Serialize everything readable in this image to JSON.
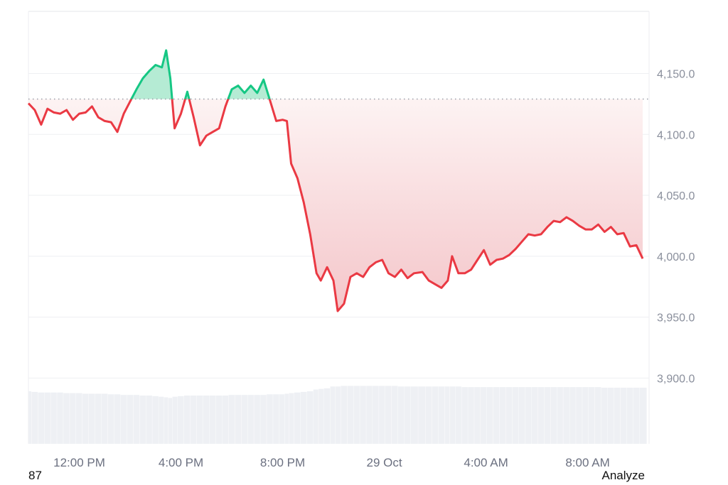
{
  "chart_data": {
    "type": "area",
    "title": "",
    "xlabel": "",
    "ylabel": "",
    "ylim": [
      3846,
      4201
    ],
    "y_ticks": [
      "4,150.0",
      "4,100.0",
      "4,050.0",
      "4,000.0",
      "3,950.0",
      "3,900.0"
    ],
    "y_tick_values": [
      4150,
      4100,
      4050,
      4000,
      3950,
      3900
    ],
    "x_ticks": [
      "12:00 PM",
      "4:00 PM",
      "8:00 PM",
      "29 Oct",
      "4:00 AM",
      "8:00 AM"
    ],
    "x_tick_minutes": [
      120,
      360,
      600,
      840,
      1080,
      1320
    ],
    "x_range_minutes": [
      0,
      1460
    ],
    "baseline": 4129,
    "grid": true,
    "colors": {
      "up": "#16c784",
      "down": "#ea3943",
      "up_fill": "#b5ebd4",
      "down_fill_top": "#fdf3f3",
      "down_fill_bottom": "#f4c4c8",
      "volume": "#eef0f4"
    },
    "points": [
      [
        "10:00",
        4125.5
      ],
      [
        "10:15",
        4120
      ],
      [
        "10:30",
        4108
      ],
      [
        "10:45",
        4121
      ],
      [
        "11:00",
        4118
      ],
      [
        "11:15",
        4117
      ],
      [
        "11:30",
        4120
      ],
      [
        "11:45",
        4112
      ],
      [
        "12:00",
        4117
      ],
      [
        "12:15",
        4118
      ],
      [
        "12:30",
        4123
      ],
      [
        "12:45",
        4114
      ],
      [
        "13:00",
        4111
      ],
      [
        "13:15",
        4110
      ],
      [
        "13:30",
        4102
      ],
      [
        "13:45",
        4117
      ],
      [
        "14:00",
        4127
      ],
      [
        "14:15",
        4137
      ],
      [
        "14:30",
        4146
      ],
      [
        "14:45",
        4152
      ],
      [
        "15:00",
        4157
      ],
      [
        "15:15",
        4155
      ],
      [
        "15:25",
        4169
      ],
      [
        "15:35",
        4146
      ],
      [
        "15:45",
        4105
      ],
      [
        "16:00",
        4117
      ],
      [
        "16:15",
        4135
      ],
      [
        "16:30",
        4114
      ],
      [
        "16:45",
        4091
      ],
      [
        "17:00",
        4099
      ],
      [
        "17:15",
        4102
      ],
      [
        "17:30",
        4105
      ],
      [
        "17:45",
        4123
      ],
      [
        "18:00",
        4137
      ],
      [
        "18:15",
        4140
      ],
      [
        "18:30",
        4134
      ],
      [
        "18:45",
        4140
      ],
      [
        "19:00",
        4134
      ],
      [
        "19:15",
        4145
      ],
      [
        "19:30",
        4128
      ],
      [
        "19:45",
        4111
      ],
      [
        "20:00",
        4112
      ],
      [
        "20:10",
        4111
      ],
      [
        "20:20",
        4076
      ],
      [
        "20:35",
        4064
      ],
      [
        "20:50",
        4044
      ],
      [
        "21:05",
        4018
      ],
      [
        "21:20",
        3986
      ],
      [
        "21:30",
        3980
      ],
      [
        "21:45",
        3991
      ],
      [
        "22:00",
        3980
      ],
      [
        "22:10",
        3955
      ],
      [
        "22:25",
        3961
      ],
      [
        "22:40",
        3983
      ],
      [
        "22:55",
        3986
      ],
      [
        "23:10",
        3983
      ],
      [
        "23:25",
        3991
      ],
      [
        "23:40",
        3995
      ],
      [
        "23:55",
        3997
      ],
      [
        "00:10",
        3986
      ],
      [
        "00:25",
        3983
      ],
      [
        "00:40",
        3989
      ],
      [
        "00:55",
        3982
      ],
      [
        "01:10",
        3986
      ],
      [
        "01:30",
        3987
      ],
      [
        "01:45",
        3980
      ],
      [
        "02:00",
        3977
      ],
      [
        "02:15",
        3974
      ],
      [
        "02:30",
        3980
      ],
      [
        "02:40",
        4000
      ],
      [
        "02:55",
        3986
      ],
      [
        "03:10",
        3986
      ],
      [
        "03:25",
        3989
      ],
      [
        "03:40",
        3997
      ],
      [
        "03:55",
        4005
      ],
      [
        "04:10",
        3993
      ],
      [
        "04:25",
        3997
      ],
      [
        "04:40",
        3998
      ],
      [
        "04:55",
        4001
      ],
      [
        "05:10",
        4006
      ],
      [
        "05:25",
        4012
      ],
      [
        "05:40",
        4018
      ],
      [
        "05:55",
        4017
      ],
      [
        "06:10",
        4018
      ],
      [
        "06:25",
        4024
      ],
      [
        "06:40",
        4029
      ],
      [
        "06:55",
        4028
      ],
      [
        "07:10",
        4032
      ],
      [
        "07:25",
        4029
      ],
      [
        "07:40",
        4025
      ],
      [
        "07:55",
        4022
      ],
      [
        "08:10",
        4022
      ],
      [
        "08:25",
        4026
      ],
      [
        "08:40",
        4020
      ],
      [
        "08:55",
        4024
      ],
      [
        "09:10",
        4018
      ],
      [
        "09:25",
        4019
      ],
      [
        "09:40",
        4008
      ],
      [
        "09:55",
        4009
      ],
      [
        "10:10",
        3998
      ]
    ],
    "point_minutes": [
      0,
      15,
      30,
      45,
      60,
      75,
      90,
      105,
      120,
      135,
      150,
      165,
      180,
      195,
      210,
      225,
      240,
      255,
      270,
      285,
      300,
      315,
      325,
      335,
      345,
      360,
      375,
      390,
      405,
      420,
      435,
      450,
      465,
      480,
      495,
      510,
      525,
      540,
      555,
      570,
      585,
      600,
      610,
      620,
      635,
      650,
      665,
      680,
      690,
      705,
      720,
      730,
      745,
      760,
      775,
      790,
      805,
      820,
      835,
      850,
      865,
      880,
      895,
      910,
      930,
      945,
      960,
      975,
      990,
      1000,
      1015,
      1030,
      1045,
      1060,
      1075,
      1090,
      1105,
      1120,
      1135,
      1150,
      1165,
      1180,
      1195,
      1210,
      1225,
      1240,
      1255,
      1270,
      1285,
      1300,
      1315,
      1330,
      1345,
      1360,
      1375,
      1390,
      1405,
      1420,
      1435,
      1450
    ],
    "volume_relative": [
      0.87,
      0.86,
      0.85,
      0.85,
      0.85,
      0.85,
      0.84,
      0.84,
      0.84,
      0.83,
      0.83,
      0.83,
      0.83,
      0.82,
      0.82,
      0.81,
      0.81,
      0.81,
      0.8,
      0.8,
      0.79,
      0.78,
      0.77,
      0.76,
      0.78,
      0.79,
      0.8,
      0.8,
      0.8,
      0.8,
      0.8,
      0.8,
      0.8,
      0.81,
      0.81,
      0.81,
      0.81,
      0.81,
      0.81,
      0.82,
      0.82,
      0.82,
      0.83,
      0.84,
      0.85,
      0.86,
      0.87,
      0.9,
      0.91,
      0.92,
      0.95,
      0.95,
      0.96,
      0.96,
      0.96,
      0.96,
      0.96,
      0.96,
      0.96,
      0.96,
      0.96,
      0.95,
      0.95,
      0.95,
      0.95,
      0.95,
      0.95,
      0.95,
      0.95,
      0.95,
      0.95,
      0.94,
      0.94,
      0.94,
      0.94,
      0.94,
      0.94,
      0.94,
      0.94,
      0.94,
      0.94,
      0.94,
      0.94,
      0.94,
      0.94,
      0.94,
      0.94,
      0.94,
      0.94,
      0.94,
      0.94,
      0.94,
      0.94,
      0.93,
      0.93,
      0.93,
      0.93,
      0.93,
      0.93,
      0.93
    ]
  },
  "footer": {
    "left_value": "87",
    "analyze_label": "Analyze"
  }
}
